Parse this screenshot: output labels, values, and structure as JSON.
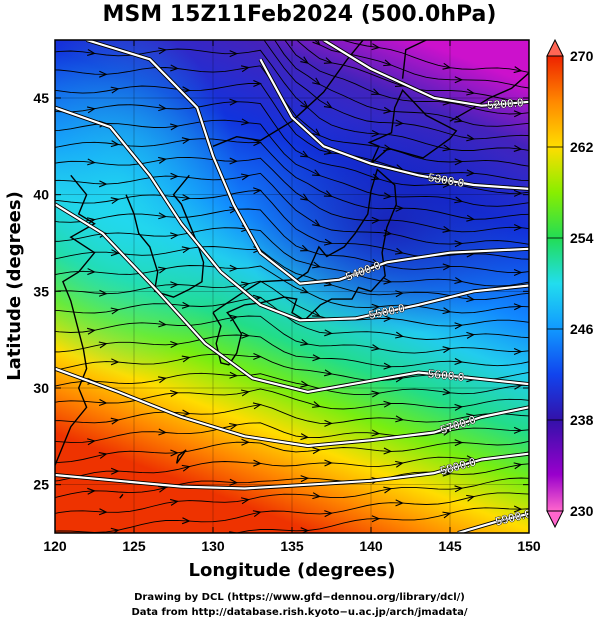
{
  "chart_data": {
    "type": "heatmap",
    "title": "MSM 15Z11Feb2024 (500.0hPa)",
    "xlabel": "Longitude (degrees)",
    "ylabel": "Latitude  (degrees)",
    "xlim": [
      120,
      150
    ],
    "ylim": [
      22.5,
      48
    ],
    "xticks": [
      120,
      125,
      130,
      135,
      140,
      145,
      150
    ],
    "yticks": [
      25,
      30,
      35,
      40,
      45
    ],
    "colorbar": {
      "range": [
        230,
        270
      ],
      "ticks": [
        230,
        238,
        246,
        254,
        262,
        270
      ],
      "colors": [
        "#ff66cc",
        "#8800cc",
        "#3311aa",
        "#0033dd",
        "#0099ff",
        "#33ddee",
        "#22dd66",
        "#88ee00",
        "#ffdd00",
        "#ff8800",
        "#ee3300",
        "#ff6655"
      ]
    },
    "contours": [
      {
        "value": 5200.0,
        "label": "5200.0",
        "points": [
          [
            137,
            48
          ],
          [
            140,
            46.5
          ],
          [
            144,
            45
          ],
          [
            147,
            44.6
          ],
          [
            150,
            44.8
          ]
        ]
      },
      {
        "value": 5300.0,
        "label": "5300.0",
        "points": [
          [
            133,
            47
          ],
          [
            135,
            44
          ],
          [
            137,
            42.5
          ],
          [
            140,
            41.6
          ],
          [
            143,
            41
          ],
          [
            146.5,
            40.5
          ],
          [
            150,
            40.3
          ]
        ]
      },
      {
        "value": 5400.0,
        "label": "5400.0",
        "points": [
          [
            122,
            48
          ],
          [
            126,
            47
          ],
          [
            129,
            44.5
          ],
          [
            130,
            42
          ],
          [
            131.3,
            39.5
          ],
          [
            133,
            37
          ],
          [
            135.5,
            35.4
          ],
          [
            138,
            35.6
          ],
          [
            141,
            36.5
          ],
          [
            145,
            37
          ],
          [
            150,
            37.2
          ]
        ]
      },
      {
        "value": 5500.0,
        "label": "5500.0",
        "points": [
          [
            120,
            44.5
          ],
          [
            123.5,
            43.5
          ],
          [
            126,
            41
          ],
          [
            128,
            38.5
          ],
          [
            130.5,
            36
          ],
          [
            133,
            34.3
          ],
          [
            135.5,
            33.5
          ],
          [
            139,
            33.6
          ],
          [
            143,
            34.3
          ],
          [
            146.5,
            35
          ],
          [
            150,
            35.3
          ]
        ]
      },
      {
        "value": 5600.0,
        "label": "5600.0",
        "points": [
          [
            120,
            39.5
          ],
          [
            123,
            38
          ],
          [
            126.5,
            35
          ],
          [
            129.5,
            32.3
          ],
          [
            132.5,
            30.5
          ],
          [
            136,
            29.8
          ],
          [
            139.5,
            30.3
          ],
          [
            143,
            30.8
          ],
          [
            146.5,
            30.5
          ],
          [
            150,
            30.2
          ]
        ]
      },
      {
        "value": 5700.0,
        "label": "5700.0",
        "points": [
          [
            120,
            31
          ],
          [
            124,
            29.8
          ],
          [
            128,
            28.5
          ],
          [
            132,
            27.5
          ],
          [
            136,
            27
          ],
          [
            140,
            27.3
          ],
          [
            144,
            27.7
          ],
          [
            147,
            28.5
          ],
          [
            150,
            29
          ]
        ]
      },
      {
        "value": 5800.0,
        "label": "5800.0",
        "points": [
          [
            120,
            25.5
          ],
          [
            124,
            25.2
          ],
          [
            128,
            24.9
          ],
          [
            132,
            24.8
          ],
          [
            136,
            25
          ],
          [
            140,
            25.2
          ],
          [
            144,
            25.6
          ],
          [
            147,
            26.3
          ],
          [
            150,
            26.6
          ]
        ]
      },
      {
        "value": 5900.0,
        "label": "5900.0",
        "points": [
          [
            145.5,
            22.5
          ],
          [
            148,
            23.1
          ],
          [
            150,
            23.5
          ]
        ]
      }
    ],
    "field_shading": [
      {
        "position": 0.0,
        "temperature": 230
      },
      {
        "position": 0.1,
        "temperature": 234
      },
      {
        "position": 0.25,
        "temperature": 238
      },
      {
        "position": 0.45,
        "temperature": 244
      },
      {
        "position": 0.6,
        "temperature": 250
      },
      {
        "position": 0.72,
        "temperature": 256
      },
      {
        "position": 0.85,
        "temperature": 262
      },
      {
        "position": 1.0,
        "temperature": 267
      }
    ]
  },
  "credits": {
    "line1": "Drawing by DCL (https://www.gfd−dennou.org/library/dcl/)",
    "line2": "Data from http://database.rish.kyoto−u.ac.jp/arch/jmadata/"
  }
}
